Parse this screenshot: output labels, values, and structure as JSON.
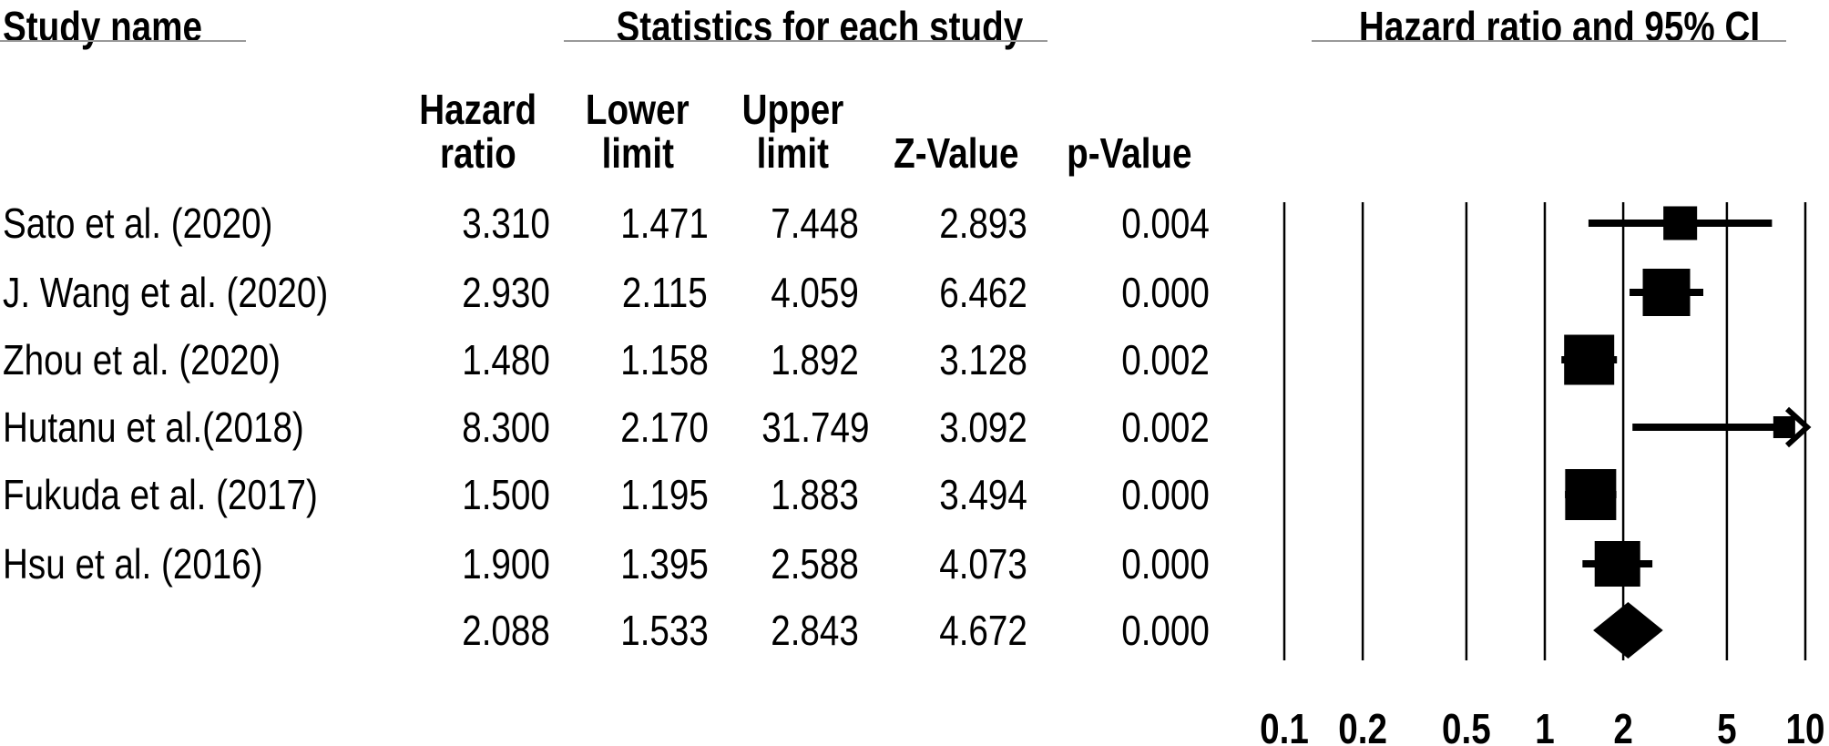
{
  "header": {
    "study_column_title": "Study name",
    "stats_column_title": "Statistics for each study",
    "plot_column_title": "Hazard ratio and 95% CI"
  },
  "stat_columns": [
    {
      "line1": "Hazard",
      "line2": "ratio"
    },
    {
      "line1": "Lower",
      "line2": "limit"
    },
    {
      "line1": "Upper",
      "line2": "limit"
    },
    {
      "line1": "",
      "line2": "Z-Value"
    },
    {
      "line1": "",
      "line2": "p-Value"
    }
  ],
  "chart_data": {
    "type": "forest",
    "x_scale": "log10",
    "x_range": [
      0.1,
      10
    ],
    "x_ticks": [
      "0.1",
      "0.2",
      "0.5",
      "1",
      "2",
      "5",
      "10"
    ],
    "grid": "vertical-lines",
    "studies": [
      {
        "name": "Sato et al. (2020)",
        "hazard_ratio": "3.310",
        "lower_limit": "1.471",
        "upper_limit": "7.448",
        "z_value": "2.893",
        "p_value": "0.004",
        "marker_size": 37
      },
      {
        "name": "J. Wang et al. (2020)",
        "hazard_ratio": "2.930",
        "lower_limit": "2.115",
        "upper_limit": "4.059",
        "z_value": "6.462",
        "p_value": "0.000",
        "marker_size": 52
      },
      {
        "name": "Zhou et al. (2020)",
        "hazard_ratio": "1.480",
        "lower_limit": "1.158",
        "upper_limit": "1.892",
        "z_value": "3.128",
        "p_value": "0.002",
        "marker_size": 55
      },
      {
        "name": "Hutanu et al.(2018)",
        "hazard_ratio": "8.300",
        "lower_limit": "2.170",
        "upper_limit": "31.749",
        "z_value": "3.092",
        "p_value": "0.002",
        "marker_size": 24
      },
      {
        "name": "Fukuda et al. (2017)",
        "hazard_ratio": "1.500",
        "lower_limit": "1.195",
        "upper_limit": "1.883",
        "z_value": "3.494",
        "p_value": "0.000",
        "marker_size": 56
      },
      {
        "name": "Hsu et al. (2016)",
        "hazard_ratio": "1.900",
        "lower_limit": "1.395",
        "upper_limit": "2.588",
        "z_value": "4.073",
        "p_value": "0.000",
        "marker_size": 50
      }
    ],
    "summary": {
      "name": "",
      "marker": "diamond",
      "hazard_ratio": "2.088",
      "lower_limit": "1.533",
      "upper_limit": "2.843",
      "z_value": "4.672",
      "p_value": "0.000"
    },
    "colors": {
      "marker": "#000000",
      "text": "#000000",
      "underline": "#999999",
      "background": "#ffffff"
    }
  }
}
